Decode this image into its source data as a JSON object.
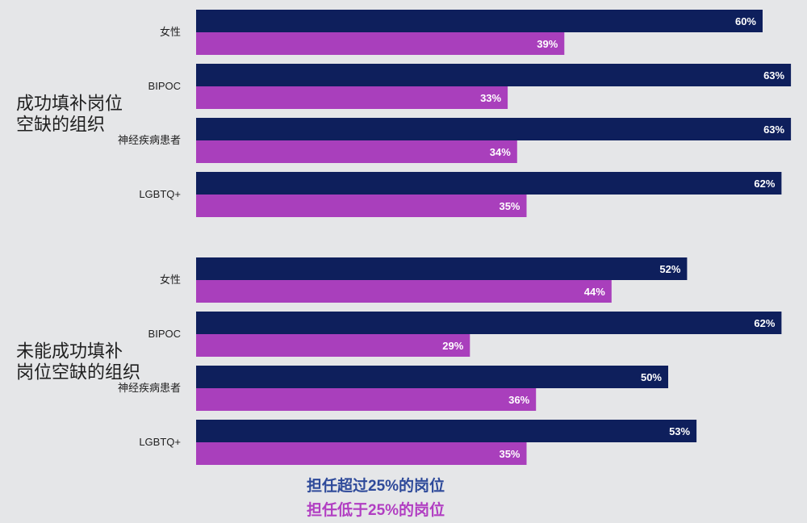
{
  "chart_data": {
    "type": "bar",
    "orientation": "horizontal",
    "xlim": [
      0,
      65
    ],
    "grid": false,
    "legend_position": "bottom-left",
    "colors": {
      "above": "#0e1f5c",
      "below": "#a93fbc"
    },
    "groups": [
      {
        "title": [
          "成功填补岗位",
          "空缺的组织"
        ],
        "categories": [
          "女性",
          "BIPOC",
          "神经疾病患者",
          "LGBTQ+"
        ],
        "series": [
          {
            "name": "担任超过25%的岗位",
            "values": [
              60,
              63,
              63,
              62
            ],
            "labels": [
              "60%",
              "63%",
              "63%",
              "62%"
            ]
          },
          {
            "name": "担任低于25%的岗位",
            "values": [
              39,
              33,
              34,
              35
            ],
            "labels": [
              "39%",
              "33%",
              "34%",
              "35%"
            ]
          }
        ]
      },
      {
        "title": [
          "未能成功填补",
          "岗位空缺的组织"
        ],
        "categories": [
          "女性",
          "BIPOC",
          "神经疾病患者",
          "LGBTQ+"
        ],
        "series": [
          {
            "name": "担任超过25%的岗位",
            "values": [
              52,
              62,
              50,
              53
            ],
            "labels": [
              "52%",
              "62%",
              "50%",
              "53%"
            ]
          },
          {
            "name": "担任低于25%的岗位",
            "values": [
              44,
              29,
              36,
              35
            ],
            "labels": [
              "44%",
              "29%",
              "36%",
              "35%"
            ]
          }
        ]
      }
    ],
    "legend": [
      "担任超过25%的岗位",
      "担任低于25%的岗位"
    ]
  }
}
